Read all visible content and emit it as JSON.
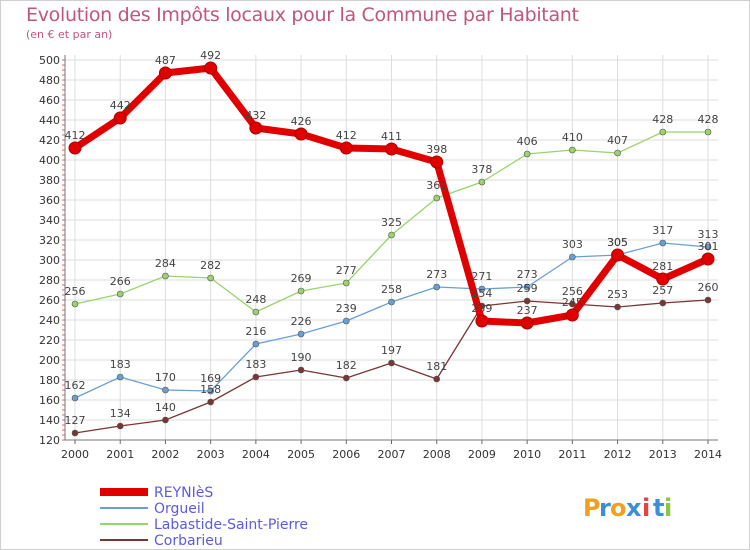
{
  "title": "Evolution des Impôts locaux pour la Commune par Habitant",
  "subtitle": "(en € et par an)",
  "logo": {
    "letters": [
      "P",
      "r",
      "o",
      "x",
      "i",
      "t",
      "i"
    ],
    "colors": [
      "#f0a020",
      "#3a8fd8",
      "#f0a020",
      "#3a8fd8",
      "#e94040",
      "#3a8fd8",
      "#8cc63f"
    ]
  },
  "chart_data": {
    "type": "line",
    "x": [
      "2000",
      "2001",
      "2002",
      "2003",
      "2004",
      "2005",
      "2006",
      "2007",
      "2008",
      "2009",
      "2010",
      "2011",
      "2012",
      "2013",
      "2014"
    ],
    "ylim": [
      120,
      500
    ],
    "yticks": [
      120,
      140,
      160,
      180,
      200,
      220,
      240,
      260,
      280,
      300,
      320,
      340,
      360,
      380,
      400,
      420,
      440,
      460,
      480,
      500
    ],
    "grid": true,
    "legend_position": "bottom-left",
    "series": [
      {
        "name": "REYNIèS",
        "color": "#e00000",
        "values": [
          412,
          442,
          487,
          492,
          432,
          426,
          412,
          411,
          398,
          239,
          237,
          245,
          305,
          281,
          301
        ],
        "labels": [
          "412",
          "442",
          "487",
          "492",
          "432",
          "426",
          "412",
          "411",
          "398",
          "239",
          "237",
          "245",
          "305",
          "281",
          "301"
        ]
      },
      {
        "name": "Orgueil",
        "color": "#6a9fd4",
        "values": [
          162,
          183,
          170,
          169,
          216,
          226,
          239,
          258,
          273,
          271,
          273,
          303,
          305,
          317,
          313
        ],
        "labels": [
          "162",
          "183",
          "170",
          "169",
          "216",
          "226",
          "239",
          "258",
          "273",
          "271",
          "273",
          "303",
          "305",
          "317",
          "313"
        ]
      },
      {
        "name": "Labastide-Saint-Pierre",
        "color": "#99d36b",
        "values": [
          256,
          266,
          284,
          282,
          248,
          269,
          277,
          325,
          362,
          378,
          406,
          410,
          407,
          428,
          428
        ],
        "labels": [
          "256",
          "266",
          "284",
          "282",
          "248",
          "269",
          "277",
          "325",
          "362",
          "378",
          "406",
          "410",
          "407",
          "428",
          "428"
        ]
      },
      {
        "name": "Corbarieu",
        "color": "#7a3535",
        "values": [
          127,
          134,
          140,
          158,
          183,
          190,
          182,
          197,
          181,
          254,
          259,
          256,
          253,
          257,
          260
        ],
        "labels": [
          "127",
          "134",
          "140",
          "158",
          "183",
          "190",
          "182",
          "197",
          "181",
          "254",
          "259",
          "256",
          "253",
          "257",
          "260"
        ]
      }
    ]
  }
}
